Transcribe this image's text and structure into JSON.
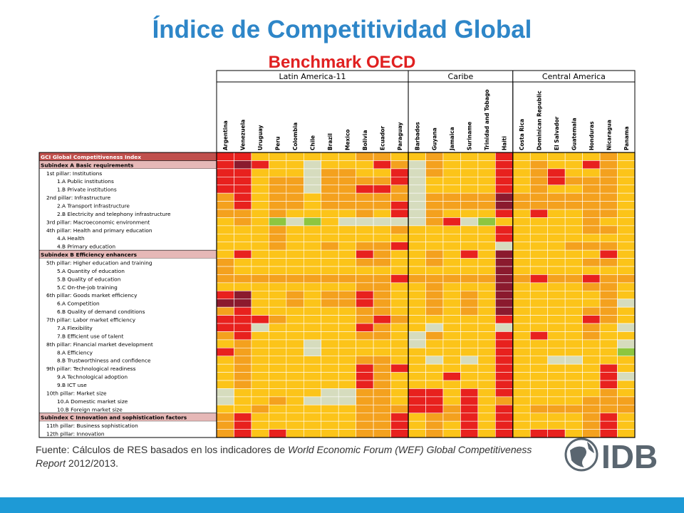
{
  "slide": {
    "title": "Índice de Competitividad Global",
    "subtitle": "Benchmark OECD",
    "source_prefix": "Fuente: Cálculos de RES basados en los indicadores de ",
    "source_italic1": "World Economic Forum (WEF) Global Competitiveness Report",
    "source_suffix": " 2012/2013.",
    "logo_text": "IDB"
  },
  "chart_data": {
    "type": "heatmap",
    "title": "",
    "groups": [
      {
        "name": "Latin America-11",
        "count": 11
      },
      {
        "name": "Caribe",
        "count": 6
      },
      {
        "name": "Central America",
        "count": 7
      }
    ],
    "columns": [
      "Argentina",
      "Venezuela",
      "Uruguay",
      "Peru",
      "Colombia",
      "Chile",
      "Brazil",
      "Mexico",
      "Bolivia",
      "Ecuador",
      "Paraguay",
      "Barbados",
      "Guyana",
      "Jamaica",
      "Suriname",
      "Trinidad and Tobago",
      "Haiti",
      "Costa Rica",
      "Dominican Republic",
      "El Salvador",
      "Guatemala",
      "Honduras",
      "Nicaragua",
      "Panama"
    ],
    "rows": [
      {
        "label": "GCI Global Competitiveness Index",
        "type": "index"
      },
      {
        "label": "Subindex A Basic requirements",
        "type": "subindex"
      },
      {
        "label": "1st pillar: Institutions",
        "type": "pillar"
      },
      {
        "label": "1.A Public institutions",
        "type": "sub"
      },
      {
        "label": "1.B Private institutions",
        "type": "sub"
      },
      {
        "label": "2nd pillar: Infrastructure",
        "type": "pillar"
      },
      {
        "label": "2.A Transport infrastructure",
        "type": "sub"
      },
      {
        "label": "2.B Electricity and telephony infrastructure",
        "type": "sub"
      },
      {
        "label": "3rd pillar: Macroeconomic environment",
        "type": "pillar"
      },
      {
        "label": "4th pillar: Health and primary education",
        "type": "pillar"
      },
      {
        "label": "4.A Health",
        "type": "sub"
      },
      {
        "label": "4.B Primary education",
        "type": "sub"
      },
      {
        "label": "Subindex B Efficiency enhancers",
        "type": "subindex"
      },
      {
        "label": "5th pillar: Higher education and training",
        "type": "pillar"
      },
      {
        "label": "5.A Quantity of education",
        "type": "sub"
      },
      {
        "label": "5.B Quality of education",
        "type": "sub"
      },
      {
        "label": "5.C On-the-job training",
        "type": "sub"
      },
      {
        "label": "6th pillar: Goods market efficiency",
        "type": "pillar"
      },
      {
        "label": "6.A Competition",
        "type": "sub"
      },
      {
        "label": "6.B Quality of demand conditions",
        "type": "sub"
      },
      {
        "label": "7th pillar: Labor market efficiency",
        "type": "pillar"
      },
      {
        "label": "7.A Flexibility",
        "type": "sub"
      },
      {
        "label": "7.B Efficient use of talent",
        "type": "sub"
      },
      {
        "label": "8th pillar: Financial market development",
        "type": "pillar"
      },
      {
        "label": "8.A Efficiency",
        "type": "sub"
      },
      {
        "label": "8.B Trustworthiness and confidence",
        "type": "sub"
      },
      {
        "label": "9th pillar: Technological readiness",
        "type": "pillar"
      },
      {
        "label": "9.A Technological adoption",
        "type": "sub"
      },
      {
        "label": "9.B ICT use",
        "type": "sub"
      },
      {
        "label": "10th pillar: Market size",
        "type": "pillar"
      },
      {
        "label": "10.A Domestic market size",
        "type": "sub"
      },
      {
        "label": "10.B Foreign market size",
        "type": "sub"
      },
      {
        "label": "Subindex C Innovation and sophistication factors",
        "type": "subindex"
      },
      {
        "label": "11th pillar: Business sophistication",
        "type": "pillar"
      },
      {
        "label": "12th pillar: Innovation",
        "type": "pillar"
      }
    ],
    "legend": {
      "0": "#8b1a2e",
      "1": "#e8211e",
      "2": "#f4a11e",
      "3": "#fcc419",
      "4": "#fff200",
      "5": "#d6dcbe",
      "6": "#8dc63f"
    },
    "values": [
      [
        1,
        1,
        3,
        3,
        3,
        3,
        3,
        3,
        2,
        2,
        3,
        3,
        2,
        3,
        3,
        3,
        1,
        3,
        3,
        3,
        3,
        3,
        2,
        3
      ],
      [
        1,
        0,
        1,
        3,
        3,
        5,
        3,
        3,
        3,
        1,
        2,
        5,
        2,
        3,
        3,
        3,
        1,
        3,
        2,
        3,
        3,
        1,
        2,
        3
      ],
      [
        1,
        1,
        3,
        3,
        3,
        5,
        2,
        2,
        3,
        3,
        1,
        5,
        2,
        3,
        3,
        3,
        1,
        3,
        2,
        1,
        3,
        3,
        2,
        3
      ],
      [
        1,
        1,
        3,
        2,
        2,
        5,
        2,
        2,
        2,
        2,
        1,
        5,
        3,
        3,
        3,
        3,
        1,
        3,
        2,
        1,
        2,
        2,
        2,
        3
      ],
      [
        1,
        1,
        3,
        2,
        2,
        5,
        2,
        2,
        1,
        1,
        2,
        5,
        3,
        3,
        3,
        3,
        1,
        3,
        2,
        3,
        3,
        2,
        2,
        3
      ],
      [
        2,
        1,
        3,
        2,
        2,
        3,
        2,
        2,
        2,
        2,
        2,
        5,
        2,
        2,
        2,
        2,
        0,
        2,
        2,
        2,
        2,
        2,
        2,
        3
      ],
      [
        2,
        1,
        3,
        2,
        2,
        3,
        2,
        2,
        2,
        2,
        1,
        5,
        2,
        2,
        2,
        2,
        0,
        2,
        2,
        2,
        2,
        2,
        2,
        3
      ],
      [
        2,
        2,
        3,
        2,
        3,
        3,
        3,
        3,
        2,
        3,
        1,
        5,
        2,
        3,
        3,
        3,
        1,
        3,
        1,
        3,
        3,
        2,
        2,
        3
      ],
      [
        3,
        2,
        3,
        6,
        5,
        6,
        3,
        5,
        5,
        5,
        5,
        5,
        2,
        1,
        5,
        6,
        3,
        3,
        3,
        3,
        3,
        2,
        3,
        3
      ],
      [
        3,
        3,
        3,
        2,
        3,
        3,
        3,
        3,
        3,
        3,
        2,
        3,
        3,
        3,
        3,
        3,
        1,
        3,
        3,
        3,
        3,
        2,
        2,
        3
      ],
      [
        3,
        3,
        3,
        2,
        3,
        3,
        3,
        3,
        3,
        3,
        3,
        3,
        3,
        3,
        3,
        3,
        1,
        3,
        3,
        3,
        3,
        3,
        3,
        3
      ],
      [
        3,
        3,
        3,
        2,
        3,
        3,
        2,
        3,
        2,
        2,
        1,
        3,
        3,
        3,
        3,
        3,
        5,
        3,
        3,
        3,
        2,
        2,
        2,
        3
      ],
      [
        3,
        1,
        3,
        3,
        3,
        3,
        3,
        3,
        1,
        2,
        3,
        3,
        2,
        3,
        1,
        3,
        0,
        3,
        3,
        3,
        3,
        3,
        1,
        3
      ],
      [
        2,
        3,
        3,
        3,
        3,
        3,
        3,
        3,
        2,
        2,
        3,
        3,
        2,
        3,
        3,
        3,
        0,
        3,
        3,
        3,
        3,
        2,
        2,
        3
      ],
      [
        2,
        3,
        3,
        3,
        3,
        3,
        3,
        3,
        3,
        3,
        3,
        3,
        3,
        3,
        3,
        3,
        0,
        3,
        3,
        3,
        3,
        3,
        3,
        3
      ],
      [
        2,
        2,
        2,
        2,
        2,
        2,
        2,
        2,
        2,
        2,
        1,
        2,
        2,
        2,
        2,
        2,
        0,
        2,
        1,
        2,
        2,
        1,
        2,
        2
      ],
      [
        3,
        3,
        3,
        3,
        3,
        3,
        3,
        3,
        2,
        2,
        3,
        3,
        2,
        3,
        3,
        3,
        0,
        3,
        3,
        3,
        3,
        2,
        2,
        3
      ],
      [
        1,
        0,
        3,
        3,
        2,
        3,
        2,
        2,
        1,
        2,
        3,
        3,
        2,
        3,
        2,
        3,
        0,
        3,
        3,
        3,
        3,
        3,
        2,
        3
      ],
      [
        0,
        0,
        3,
        3,
        2,
        3,
        2,
        2,
        1,
        2,
        3,
        3,
        2,
        3,
        2,
        3,
        0,
        3,
        3,
        3,
        3,
        3,
        2,
        5
      ],
      [
        2,
        1,
        3,
        3,
        3,
        3,
        3,
        3,
        2,
        2,
        3,
        3,
        2,
        3,
        2,
        3,
        0,
        3,
        3,
        3,
        3,
        2,
        2,
        3
      ],
      [
        1,
        1,
        1,
        2,
        3,
        3,
        3,
        3,
        2,
        1,
        2,
        3,
        3,
        3,
        3,
        3,
        1,
        3,
        3,
        3,
        3,
        1,
        2,
        3
      ],
      [
        1,
        1,
        5,
        3,
        3,
        3,
        3,
        3,
        1,
        2,
        3,
        3,
        5,
        3,
        3,
        3,
        5,
        3,
        3,
        3,
        3,
        2,
        3,
        5
      ],
      [
        2,
        1,
        3,
        3,
        3,
        3,
        3,
        3,
        2,
        2,
        3,
        5,
        2,
        3,
        3,
        3,
        1,
        3,
        1,
        3,
        3,
        2,
        3,
        3
      ],
      [
        3,
        2,
        3,
        3,
        3,
        5,
        3,
        3,
        3,
        3,
        3,
        5,
        3,
        3,
        3,
        3,
        1,
        3,
        3,
        3,
        3,
        3,
        3,
        5
      ],
      [
        1,
        2,
        3,
        3,
        3,
        5,
        3,
        3,
        3,
        3,
        3,
        3,
        3,
        3,
        3,
        3,
        1,
        3,
        3,
        3,
        3,
        3,
        3,
        6
      ],
      [
        3,
        2,
        3,
        3,
        3,
        3,
        3,
        3,
        2,
        2,
        3,
        3,
        5,
        3,
        5,
        3,
        1,
        3,
        3,
        5,
        5,
        3,
        3,
        3
      ],
      [
        3,
        2,
        3,
        3,
        3,
        3,
        3,
        3,
        1,
        2,
        1,
        3,
        3,
        3,
        3,
        3,
        1,
        3,
        3,
        3,
        3,
        3,
        1,
        3
      ],
      [
        3,
        2,
        3,
        3,
        3,
        3,
        3,
        3,
        1,
        2,
        3,
        3,
        3,
        1,
        3,
        3,
        1,
        3,
        3,
        3,
        3,
        3,
        1,
        5
      ],
      [
        3,
        2,
        3,
        3,
        3,
        3,
        3,
        3,
        1,
        2,
        3,
        3,
        3,
        3,
        3,
        3,
        1,
        3,
        3,
        3,
        3,
        3,
        1,
        3
      ],
      [
        5,
        3,
        3,
        3,
        3,
        3,
        5,
        5,
        2,
        2,
        3,
        1,
        1,
        3,
        1,
        3,
        1,
        3,
        3,
        3,
        3,
        3,
        2,
        3
      ],
      [
        5,
        3,
        3,
        2,
        3,
        5,
        5,
        5,
        2,
        2,
        3,
        1,
        1,
        3,
        1,
        3,
        2,
        3,
        3,
        3,
        3,
        2,
        2,
        2
      ],
      [
        3,
        3,
        2,
        3,
        3,
        3,
        3,
        3,
        2,
        2,
        2,
        1,
        1,
        2,
        1,
        3,
        1,
        3,
        2,
        2,
        2,
        2,
        2,
        2
      ],
      [
        2,
        1,
        3,
        3,
        3,
        3,
        3,
        3,
        2,
        2,
        1,
        3,
        2,
        2,
        1,
        3,
        1,
        3,
        3,
        3,
        3,
        2,
        1,
        3
      ],
      [
        2,
        1,
        3,
        3,
        3,
        3,
        3,
        3,
        2,
        2,
        1,
        3,
        2,
        3,
        1,
        3,
        1,
        3,
        3,
        3,
        3,
        2,
        1,
        3
      ],
      [
        2,
        1,
        3,
        1,
        3,
        3,
        3,
        3,
        2,
        2,
        1,
        3,
        2,
        3,
        1,
        3,
        1,
        3,
        1,
        1,
        3,
        2,
        1,
        3
      ]
    ]
  }
}
